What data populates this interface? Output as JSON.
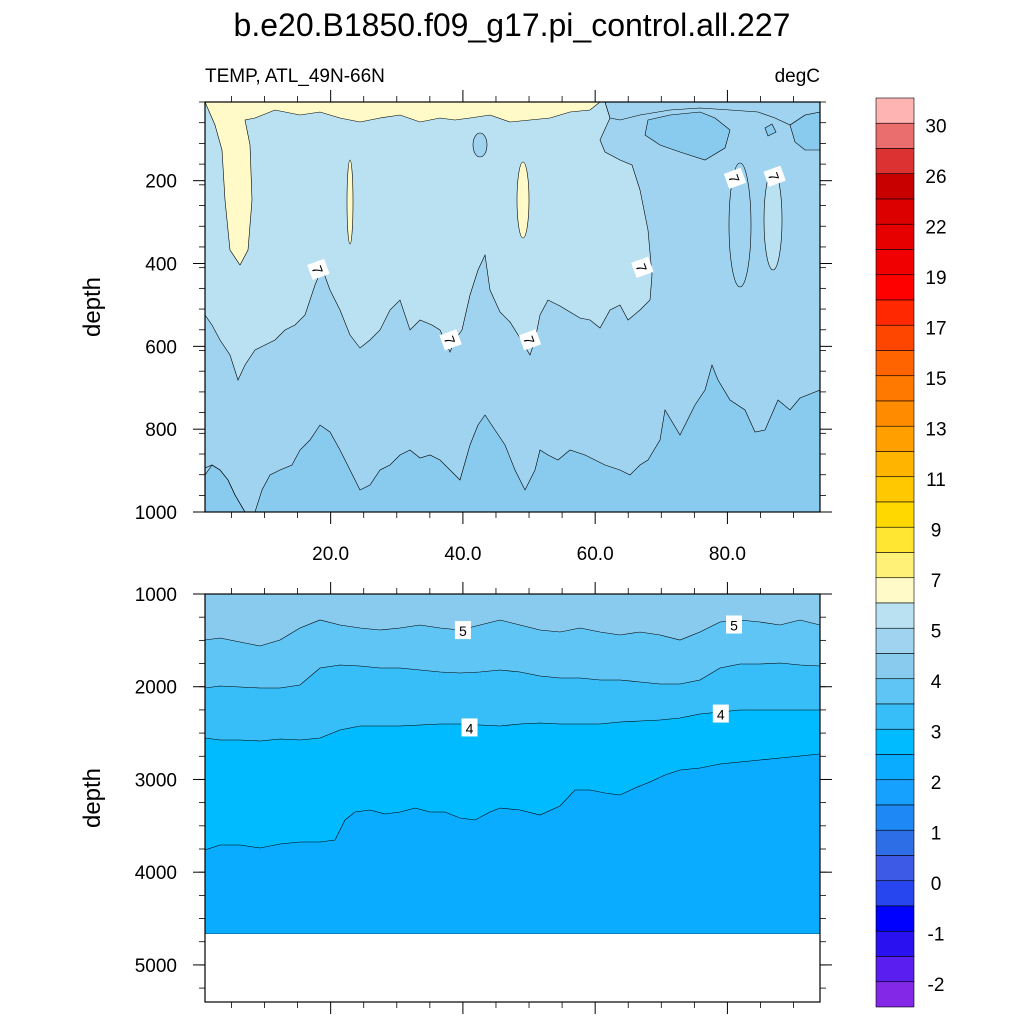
{
  "title": "b.e20.B1850.f09_g17.pi_control.all.227",
  "chart_data": [
    {
      "type": "contour",
      "panel": "upper",
      "variable_label": "TEMP, ATL_49N-66N",
      "units_label": "degC",
      "ylabel": "depth",
      "xlabel": "",
      "xlim": [
        1,
        94
      ],
      "ylim": [
        1000,
        10
      ],
      "x_ticks": [
        "20.0",
        "40.0",
        "60.0",
        "80.0"
      ],
      "x_tick_values": [
        20,
        40,
        60,
        80
      ],
      "y_ticks": [
        "200",
        "400",
        "600",
        "800",
        "1000"
      ],
      "y_tick_values": [
        200,
        400,
        600,
        800,
        1000
      ],
      "contour_labels": [
        {
          "text": "7",
          "x": 18,
          "y": 415
        },
        {
          "text": "7",
          "x": 38,
          "y": 585
        },
        {
          "text": "7",
          "x": 50,
          "y": 585
        },
        {
          "text": "7",
          "x": 67,
          "y": 410
        },
        {
          "text": "7",
          "x": 81,
          "y": 195
        },
        {
          "text": "7",
          "x": 87,
          "y": 190
        }
      ]
    },
    {
      "type": "contour",
      "panel": "lower",
      "ylabel": "depth",
      "xlim": [
        1,
        94
      ],
      "ylim": [
        5400,
        1000
      ],
      "y_ticks": [
        "1000",
        "2000",
        "3000",
        "4000",
        "5000"
      ],
      "y_tick_values": [
        1000,
        2000,
        3000,
        4000,
        5000
      ],
      "contour_labels": [
        {
          "text": "5",
          "x": 40,
          "y": 1400
        },
        {
          "text": "5",
          "x": 81,
          "y": 1340
        },
        {
          "text": "4",
          "x": 41,
          "y": 2450
        },
        {
          "text": "4",
          "x": 79,
          "y": 2300
        }
      ]
    }
  ],
  "colorbar": {
    "labels": [
      "30",
      "26",
      "22",
      "19",
      "17",
      "15",
      "13",
      "11",
      "9",
      "7",
      "5",
      "4",
      "3",
      "2",
      "1",
      "0",
      "-1",
      "-2"
    ],
    "colors": [
      "#ffb4b4",
      "#eb6e6e",
      "#dc3232",
      "#c80000",
      "#dc0000",
      "#e60000",
      "#f00000",
      "#ff0000",
      "#ff2800",
      "#ff4600",
      "#ff6400",
      "#ff7800",
      "#ff8c00",
      "#ffa000",
      "#ffb400",
      "#ffc800",
      "#ffd800",
      "#ffe632",
      "#fff078",
      "#fffac8",
      "#bae1f2",
      "#9fd3ef",
      "#89cbef",
      "#5ec5f5",
      "#37bdf7",
      "#00bbff",
      "#0aacff",
      "#16a0ff",
      "#1e88f5",
      "#2d6ee6",
      "#3c5ae6",
      "#2846f0",
      "#0000ff",
      "#2a12f0",
      "#5a1ef0",
      "#8228e6"
    ]
  }
}
